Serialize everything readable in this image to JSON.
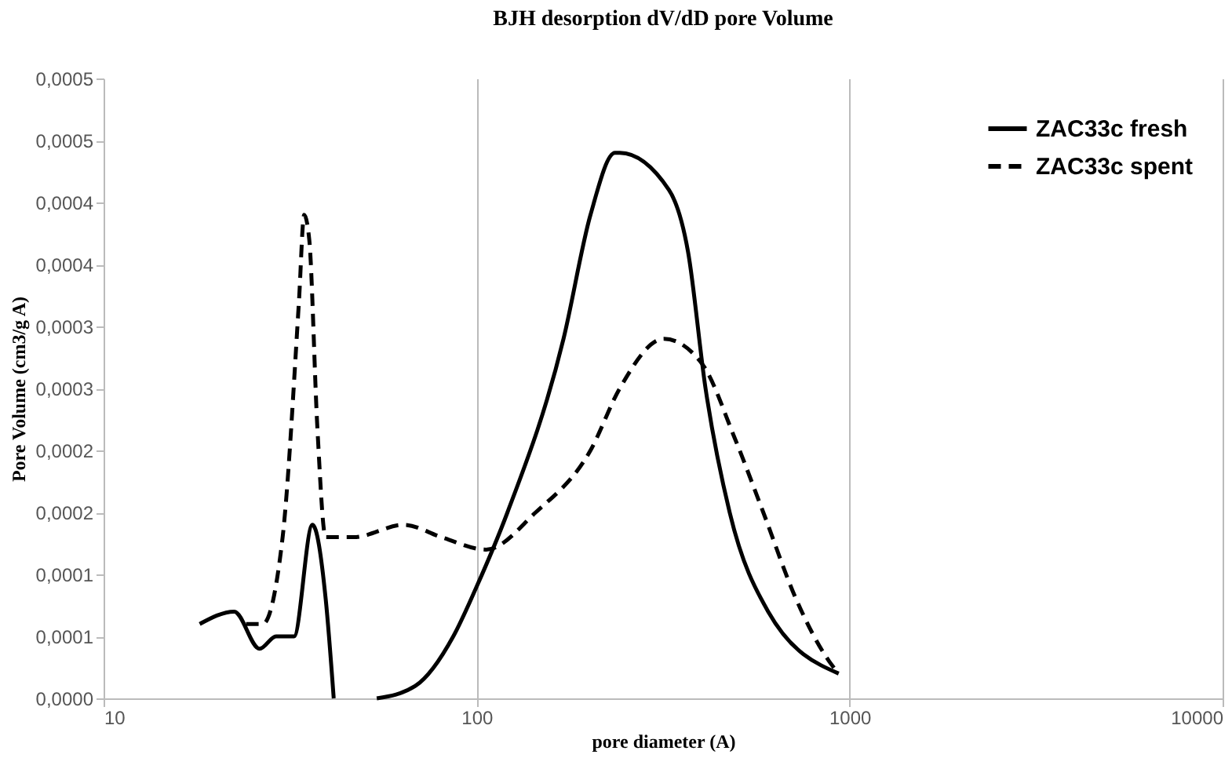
{
  "chart_data": {
    "type": "line",
    "title": "BJH desorption dV/dD pore Volume",
    "xlabel": "pore diameter (A)",
    "ylabel": "Pore Volume (cm3/g A)",
    "log": "x",
    "xlim": [
      10,
      10000
    ],
    "xticks": [
      10,
      100,
      1000,
      10000
    ],
    "ylim": [
      0,
      0.0005
    ],
    "yticks": [
      {
        "value": 0,
        "label": "0,0000"
      },
      {
        "value": 5e-05,
        "label": "0,0001"
      },
      {
        "value": 0.0001,
        "label": "0,0001"
      },
      {
        "value": 0.00015,
        "label": "0,0002"
      },
      {
        "value": 0.0002,
        "label": "0,0002"
      },
      {
        "value": 0.00025,
        "label": "0,0003"
      },
      {
        "value": 0.0003,
        "label": "0,0003"
      },
      {
        "value": 0.00035,
        "label": "0,0004"
      },
      {
        "value": 0.0004,
        "label": "0,0004"
      },
      {
        "value": 0.00045,
        "label": "0,0005"
      },
      {
        "value": 0.0005,
        "label": "0,0005"
      }
    ],
    "grid": "x",
    "legend": "top right",
    "marker": "none",
    "series": [
      {
        "name": "ZAC33c fresh",
        "color": "#000000",
        "line_style": "solid",
        "x": [
          18.1,
          22.4,
          26.2,
          29,
          32.4,
          36.3,
          39.4,
          41.4,
          47,
          54,
          68.5,
          86.6,
          100,
          121,
          171,
          202,
          235,
          242,
          328,
          369,
          411,
          477,
          605,
          935
        ],
        "values": [
          6e-05,
          7e-05,
          4e-05,
          5e-05,
          5e-05,
          0.00014,
          8e-05,
          0,
          null,
          0,
          1e-05,
          5e-05,
          9e-05,
          0.00015,
          0.00029,
          0.00039,
          0.00044,
          0.00044,
          0.00041,
          0.00036,
          0.00025,
          0.00015,
          7e-05,
          2e-05
        ]
      },
      {
        "name": "ZAC33c spent",
        "color": "#000000",
        "line_style": "dashed",
        "x": [
          24.1,
          26.7,
          30.2,
          33.4,
          34.5,
          35.6,
          37.4,
          39.4,
          46.8,
          63.8,
          80.6,
          106,
          144,
          202,
          242,
          318,
          402,
          492,
          587,
          719,
          881,
          935
        ],
        "values": [
          6e-05,
          6e-05,
          0.00013,
          0.00032,
          0.00039,
          0.00037,
          0.00022,
          0.00013,
          0.00013,
          0.00014,
          0.00013,
          0.00012,
          0.00015,
          0.0002,
          0.00025,
          0.00029,
          0.00027,
          0.00021,
          0.00015,
          8e-05,
          3e-05,
          2e-05
        ]
      }
    ]
  }
}
